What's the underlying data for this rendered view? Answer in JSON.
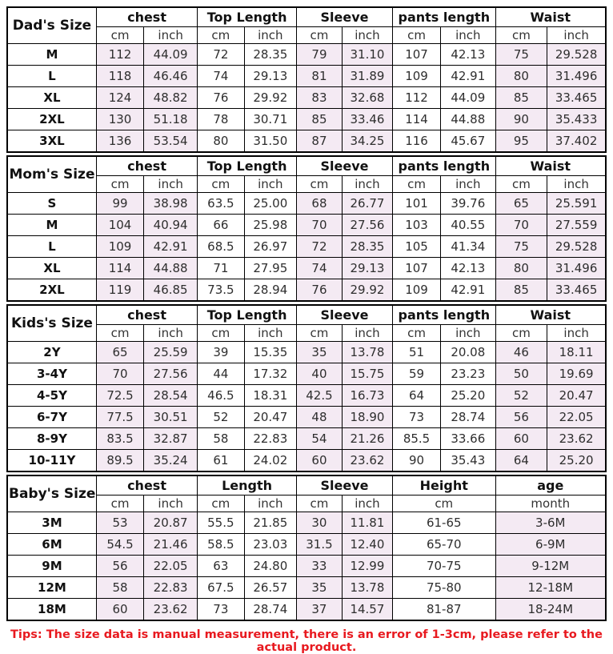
{
  "tip": "Tips: The size data is manual measurement, there is an error of 1-3cm, please refer to the actual product.",
  "colors": {
    "shade": "#f4eaf3",
    "border": "#000000",
    "tip_red": "#e8191f"
  },
  "sections": [
    {
      "title": "Dad's Size",
      "groups": [
        {
          "label": "chest",
          "sub": [
            "cm",
            "inch"
          ],
          "shaded": true
        },
        {
          "label": "Top Length",
          "sub": [
            "cm",
            "inch"
          ],
          "shaded": false
        },
        {
          "label": "Sleeve",
          "sub": [
            "cm",
            "inch"
          ],
          "shaded": true
        },
        {
          "label": "pants length",
          "sub": [
            "cm",
            "inch"
          ],
          "shaded": false
        },
        {
          "label": "Waist",
          "sub": [
            "cm",
            "inch"
          ],
          "shaded": true
        }
      ],
      "rows": [
        {
          "size": "M",
          "values": [
            "112",
            "44.09",
            "72",
            "28.35",
            "79",
            "31.10",
            "107",
            "42.13",
            "75",
            "29.528"
          ]
        },
        {
          "size": "L",
          "values": [
            "118",
            "46.46",
            "74",
            "29.13",
            "81",
            "31.89",
            "109",
            "42.91",
            "80",
            "31.496"
          ]
        },
        {
          "size": "XL",
          "values": [
            "124",
            "48.82",
            "76",
            "29.92",
            "83",
            "32.68",
            "112",
            "44.09",
            "85",
            "33.465"
          ]
        },
        {
          "size": "2XL",
          "values": [
            "130",
            "51.18",
            "78",
            "30.71",
            "85",
            "33.46",
            "114",
            "44.88",
            "90",
            "35.433"
          ]
        },
        {
          "size": "3XL",
          "values": [
            "136",
            "53.54",
            "80",
            "31.50",
            "87",
            "34.25",
            "116",
            "45.67",
            "95",
            "37.402"
          ]
        }
      ]
    },
    {
      "title": "Mom's Size",
      "groups": [
        {
          "label": "chest",
          "sub": [
            "cm",
            "inch"
          ],
          "shaded": true
        },
        {
          "label": "Top Length",
          "sub": [
            "cm",
            "inch"
          ],
          "shaded": false
        },
        {
          "label": "Sleeve",
          "sub": [
            "cm",
            "inch"
          ],
          "shaded": true
        },
        {
          "label": "pants length",
          "sub": [
            "cm",
            "inch"
          ],
          "shaded": false
        },
        {
          "label": "Waist",
          "sub": [
            "cm",
            "inch"
          ],
          "shaded": true
        }
      ],
      "rows": [
        {
          "size": "S",
          "values": [
            "99",
            "38.98",
            "63.5",
            "25.00",
            "68",
            "26.77",
            "101",
            "39.76",
            "65",
            "25.591"
          ]
        },
        {
          "size": "M",
          "values": [
            "104",
            "40.94",
            "66",
            "25.98",
            "70",
            "27.56",
            "103",
            "40.55",
            "70",
            "27.559"
          ]
        },
        {
          "size": "L",
          "values": [
            "109",
            "42.91",
            "68.5",
            "26.97",
            "72",
            "28.35",
            "105",
            "41.34",
            "75",
            "29.528"
          ]
        },
        {
          "size": "XL",
          "values": [
            "114",
            "44.88",
            "71",
            "27.95",
            "74",
            "29.13",
            "107",
            "42.13",
            "80",
            "31.496"
          ]
        },
        {
          "size": "2XL",
          "values": [
            "119",
            "46.85",
            "73.5",
            "28.94",
            "76",
            "29.92",
            "109",
            "42.91",
            "85",
            "33.465"
          ]
        }
      ]
    },
    {
      "title": "Kids's Size",
      "groups": [
        {
          "label": "chest",
          "sub": [
            "cm",
            "inch"
          ],
          "shaded": true
        },
        {
          "label": "Top Length",
          "sub": [
            "cm",
            "inch"
          ],
          "shaded": false
        },
        {
          "label": "Sleeve",
          "sub": [
            "cm",
            "inch"
          ],
          "shaded": true
        },
        {
          "label": "pants length",
          "sub": [
            "cm",
            "inch"
          ],
          "shaded": false
        },
        {
          "label": "Waist",
          "sub": [
            "cm",
            "inch"
          ],
          "shaded": true
        }
      ],
      "rows": [
        {
          "size": "2Y",
          "values": [
            "65",
            "25.59",
            "39",
            "15.35",
            "35",
            "13.78",
            "51",
            "20.08",
            "46",
            "18.11"
          ]
        },
        {
          "size": "3-4Y",
          "values": [
            "70",
            "27.56",
            "44",
            "17.32",
            "40",
            "15.75",
            "59",
            "23.23",
            "50",
            "19.69"
          ]
        },
        {
          "size": "4-5Y",
          "values": [
            "72.5",
            "28.54",
            "46.5",
            "18.31",
            "42.5",
            "16.73",
            "64",
            "25.20",
            "52",
            "20.47"
          ]
        },
        {
          "size": "6-7Y",
          "values": [
            "77.5",
            "30.51",
            "52",
            "20.47",
            "48",
            "18.90",
            "73",
            "28.74",
            "56",
            "22.05"
          ]
        },
        {
          "size": "8-9Y",
          "values": [
            "83.5",
            "32.87",
            "58",
            "22.83",
            "54",
            "21.26",
            "85.5",
            "33.66",
            "60",
            "23.62"
          ]
        },
        {
          "size": "10-11Y",
          "values": [
            "89.5",
            "35.24",
            "61",
            "24.02",
            "60",
            "23.62",
            "90",
            "35.43",
            "64",
            "25.20"
          ]
        }
      ]
    },
    {
      "title": "Baby's Size",
      "groups": [
        {
          "label": "chest",
          "sub": [
            "cm",
            "inch"
          ],
          "shaded": true
        },
        {
          "label": "Length",
          "sub": [
            "cm",
            "inch"
          ],
          "shaded": false
        },
        {
          "label": "Sleeve",
          "sub": [
            "cm",
            "inch"
          ],
          "shaded": true
        },
        {
          "label": "Height",
          "sub": [
            "cm"
          ],
          "shaded": false
        },
        {
          "label": "age",
          "sub": [
            "month"
          ],
          "shaded": true
        }
      ],
      "rows": [
        {
          "size": "3M",
          "values": [
            "53",
            "20.87",
            "55.5",
            "21.85",
            "30",
            "11.81",
            "61-65",
            "3-6M"
          ]
        },
        {
          "size": "6M",
          "values": [
            "54.5",
            "21.46",
            "58.5",
            "23.03",
            "31.5",
            "12.40",
            "65-70",
            "6-9M"
          ]
        },
        {
          "size": "9M",
          "values": [
            "56",
            "22.05",
            "63",
            "24.80",
            "33",
            "12.99",
            "70-75",
            "9-12M"
          ]
        },
        {
          "size": "12M",
          "values": [
            "58",
            "22.83",
            "67.5",
            "26.57",
            "35",
            "13.78",
            "75-80",
            "12-18M"
          ]
        },
        {
          "size": "18M",
          "values": [
            "60",
            "23.62",
            "73",
            "28.74",
            "37",
            "14.57",
            "81-87",
            "18-24M"
          ]
        }
      ]
    }
  ]
}
